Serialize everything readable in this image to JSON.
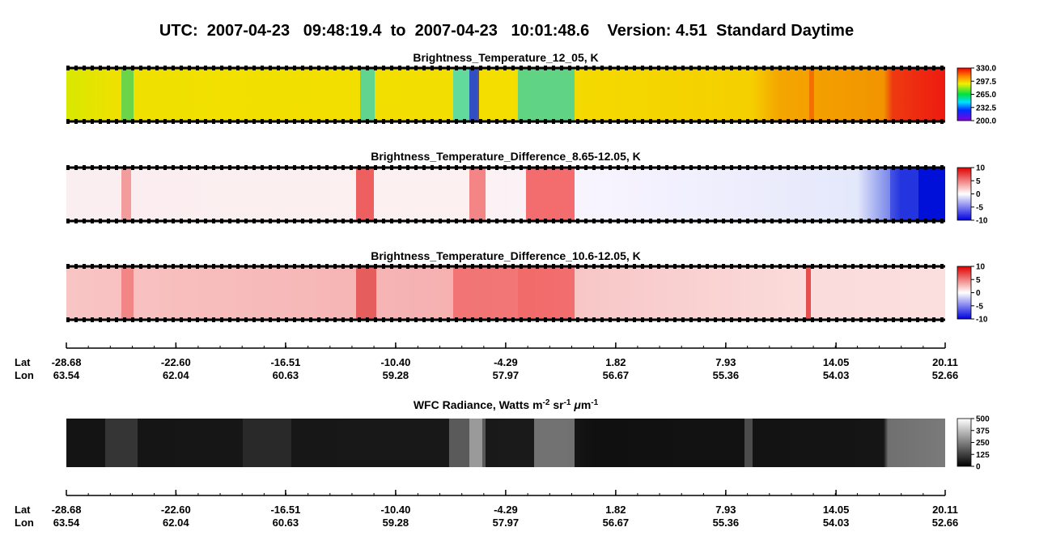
{
  "chart_data": {
    "type": "swath",
    "title": "UTC:  2007-04-23   09:48:19.4  to  2007-04-23   10:01:48.6    Version: 4.51  Standard Daytime",
    "panels": [
      {
        "title": "Brightness_Temperature_12_05, K",
        "colormap": "rainbow",
        "clim": [
          200,
          330
        ],
        "cticks": [
          {
            "value": 330,
            "label": "330.0"
          },
          297.5,
          {
            "value": 265,
            "label": "265.0"
          },
          232.5,
          {
            "value": 200,
            "label": "200.0"
          }
        ]
      },
      {
        "title": "Brightness_Temperature_Difference_8.65-12.05, K",
        "colormap": "bwr",
        "clim": [
          -10,
          10
        ],
        "cticks": [
          10,
          5,
          0,
          -5,
          -10
        ]
      },
      {
        "title": "Brightness_Temperature_Difference_10.6-12.05, K",
        "colormap": "bwr",
        "clim": [
          -10,
          10
        ],
        "cticks": [
          10,
          5,
          0,
          -5,
          -10
        ]
      },
      {
        "title_parts": [
          {
            "text": "WFC Radiance, Watts m"
          },
          {
            "text": "-2",
            "sup": true
          },
          {
            "text": " sr"
          },
          {
            "text": "-1",
            "sup": true
          },
          {
            "text": " "
          },
          {
            "text": "μ",
            "italic": true
          },
          {
            "text": "m"
          },
          {
            "text": "-1",
            "sup": true
          }
        ],
        "colormap": "gray",
        "clim": [
          0,
          500
        ],
        "cticks": [
          500,
          375,
          250,
          125,
          0
        ]
      }
    ],
    "lat_label": "Lat",
    "lon_label": "Lon",
    "xlim": [
      -28.68,
      20.11
    ],
    "lat_ticks": [
      -28.68,
      -22.6,
      -16.51,
      -10.4,
      -4.29,
      1.82,
      7.93,
      14.05,
      20.11
    ],
    "lat_tick_labels": [
      "-28.68",
      "-22.60",
      "-16.51",
      "-10.40",
      "-4.29",
      "1.82",
      "7.93",
      "14.05",
      "20.11"
    ],
    "lon_ticks": [
      63.54,
      62.04,
      60.63,
      59.28,
      57.97,
      56.67,
      55.36,
      54.03,
      52.66
    ]
  }
}
